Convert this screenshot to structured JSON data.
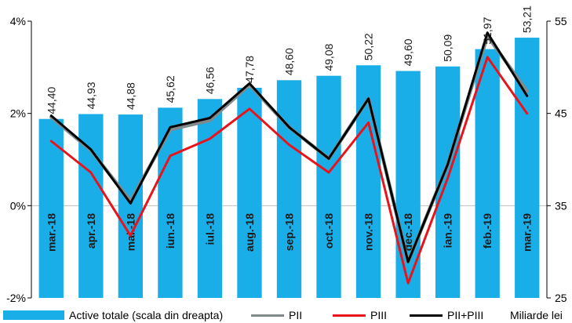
{
  "chart_data": {
    "type": "bar+line",
    "categories": [
      "mar.-18",
      "apr.-18",
      "mai.-18",
      "iun.-18",
      "iul.-18",
      "aug.-18",
      "sep.-18",
      "oct.-18",
      "nov.-18",
      "dec.-18",
      "ian.-19",
      "feb.-19",
      "mar.-19"
    ],
    "bars": {
      "name": "Active totale (scala din dreapta)",
      "axis": "right",
      "color": "#1AAEE8",
      "values": [
        44.4,
        44.93,
        44.88,
        45.62,
        46.56,
        47.78,
        48.6,
        49.08,
        50.22,
        49.6,
        50.09,
        51.97,
        53.21
      ],
      "labels": [
        "44,40",
        "44,93",
        "44,88",
        "45,62",
        "46,56",
        "47,78",
        "48,60",
        "49,08",
        "50,22",
        "49,60",
        "50,09",
        "51,97",
        "53,21"
      ]
    },
    "series": [
      {
        "name": "PII",
        "axis": "left",
        "color": "#808A8C",
        "values": [
          1.92,
          1.2,
          0.1,
          1.65,
          1.85,
          2.62,
          1.7,
          1.02,
          2.32,
          -1.22,
          0.9,
          3.68,
          2.48
        ]
      },
      {
        "name": "PIII",
        "axis": "left",
        "color": "#E8141B",
        "values": [
          1.4,
          0.72,
          -0.65,
          1.08,
          1.45,
          2.1,
          1.32,
          0.72,
          1.8,
          -1.68,
          0.6,
          3.22,
          2.0
        ]
      },
      {
        "name": "PII+PIII",
        "axis": "left",
        "color": "#000000",
        "values": [
          1.95,
          1.22,
          0.05,
          1.7,
          1.9,
          2.65,
          1.7,
          1.02,
          2.32,
          -1.22,
          0.9,
          3.75,
          2.38
        ]
      }
    ],
    "y_left": {
      "min": -2,
      "max": 4,
      "ticks": [
        "-2%",
        "0%",
        "2%",
        "4%"
      ]
    },
    "y_right": {
      "min": 25,
      "max": 55,
      "ticks": [
        "25",
        "35",
        "45",
        "55"
      ]
    },
    "unit_label": "Miliarde lei",
    "legend_position": "bottom"
  }
}
